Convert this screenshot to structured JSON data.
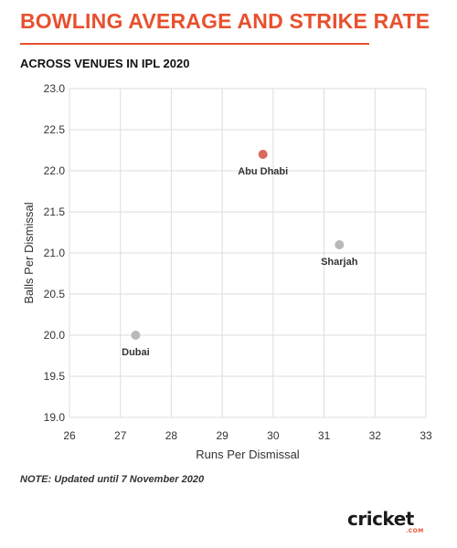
{
  "header": {
    "title": "BOWLING AVERAGE AND STRIKE RATE",
    "subtitle": "ACROSS VENUES IN IPL 2020"
  },
  "footer": {
    "note": "NOTE: Updated until 7 November 2020",
    "logo_text": "cricket",
    "logo_sub": ".COM"
  },
  "colors": {
    "accent": "#e8502f",
    "highlight_point": "#d9695a",
    "default_point": "#b9b9b9",
    "grid": "#dddddd"
  },
  "chart_data": {
    "type": "scatter",
    "title": "BOWLING AVERAGE AND STRIKE RATE",
    "subtitle": "ACROSS VENUES IN IPL 2020",
    "xlabel": "Runs Per Dismissal",
    "ylabel": "Balls Per Dismissal",
    "xlim": [
      26,
      33
    ],
    "ylim": [
      19.0,
      23.0
    ],
    "xticks": [
      "26",
      "27",
      "28",
      "29",
      "30",
      "31",
      "32",
      "33"
    ],
    "yticks": [
      "19.0",
      "19.5",
      "20.0",
      "20.5",
      "21.0",
      "21.5",
      "22.0",
      "22.5",
      "23.0"
    ],
    "grid": true,
    "points": [
      {
        "label": "Abu Dhabi",
        "x": 29.8,
        "y": 22.2,
        "highlight": true
      },
      {
        "label": "Sharjah",
        "x": 31.3,
        "y": 21.1,
        "highlight": false
      },
      {
        "label": "Dubai",
        "x": 27.3,
        "y": 20.0,
        "highlight": false
      }
    ]
  }
}
